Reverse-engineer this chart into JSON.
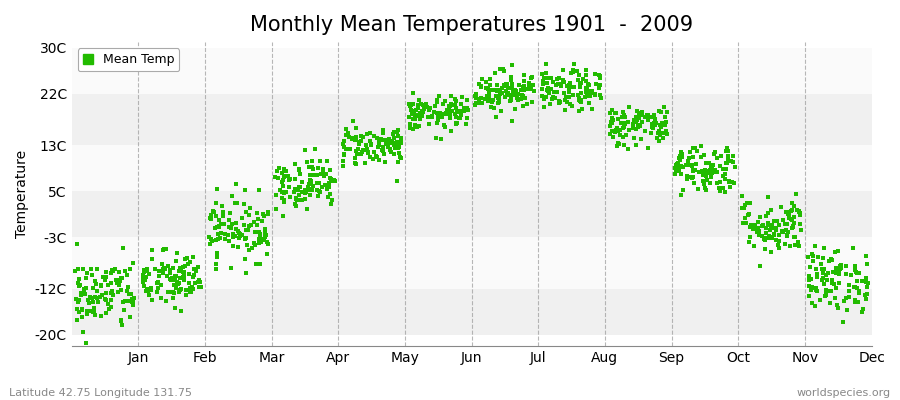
{
  "title": "Monthly Mean Temperatures 1901  -  2009",
  "ylabel": "Temperature",
  "subtitle_left": "Latitude 42.75 Longitude 131.75",
  "subtitle_right": "worldspecies.org",
  "legend_label": "Mean Temp",
  "yticks": [
    -20,
    -12,
    -3,
    5,
    13,
    22,
    30
  ],
  "ytick_labels": [
    "-20C",
    "-12C",
    "-3C",
    "5C",
    "13C",
    "22C",
    "30C"
  ],
  "ylim": [
    -22,
    31
  ],
  "months": [
    "Jan",
    "Feb",
    "Mar",
    "Apr",
    "May",
    "Jun",
    "Jul",
    "Aug",
    "Sep",
    "Oct",
    "Nov",
    "Dec"
  ],
  "month_means": [
    -13.0,
    -10.5,
    -1.5,
    6.5,
    13.0,
    18.5,
    22.5,
    22.5,
    16.5,
    9.0,
    -1.0,
    -10.5
  ],
  "month_stds": [
    3.2,
    2.5,
    2.8,
    2.2,
    1.8,
    1.5,
    1.8,
    1.8,
    1.8,
    2.2,
    2.5,
    2.8
  ],
  "n_years": 109,
  "dot_color": "#22BB00",
  "dot_size": 5,
  "background_color": "#ffffff",
  "band_colors": [
    "#f0f0f0",
    "#fafafa",
    "#f0f0f0",
    "#fafafa",
    "#f0f0f0",
    "#fafafa"
  ],
  "grid_color": "#999999",
  "title_fontsize": 15,
  "axis_fontsize": 10,
  "tick_fontsize": 10,
  "legend_fontsize": 9,
  "random_seed": 42
}
